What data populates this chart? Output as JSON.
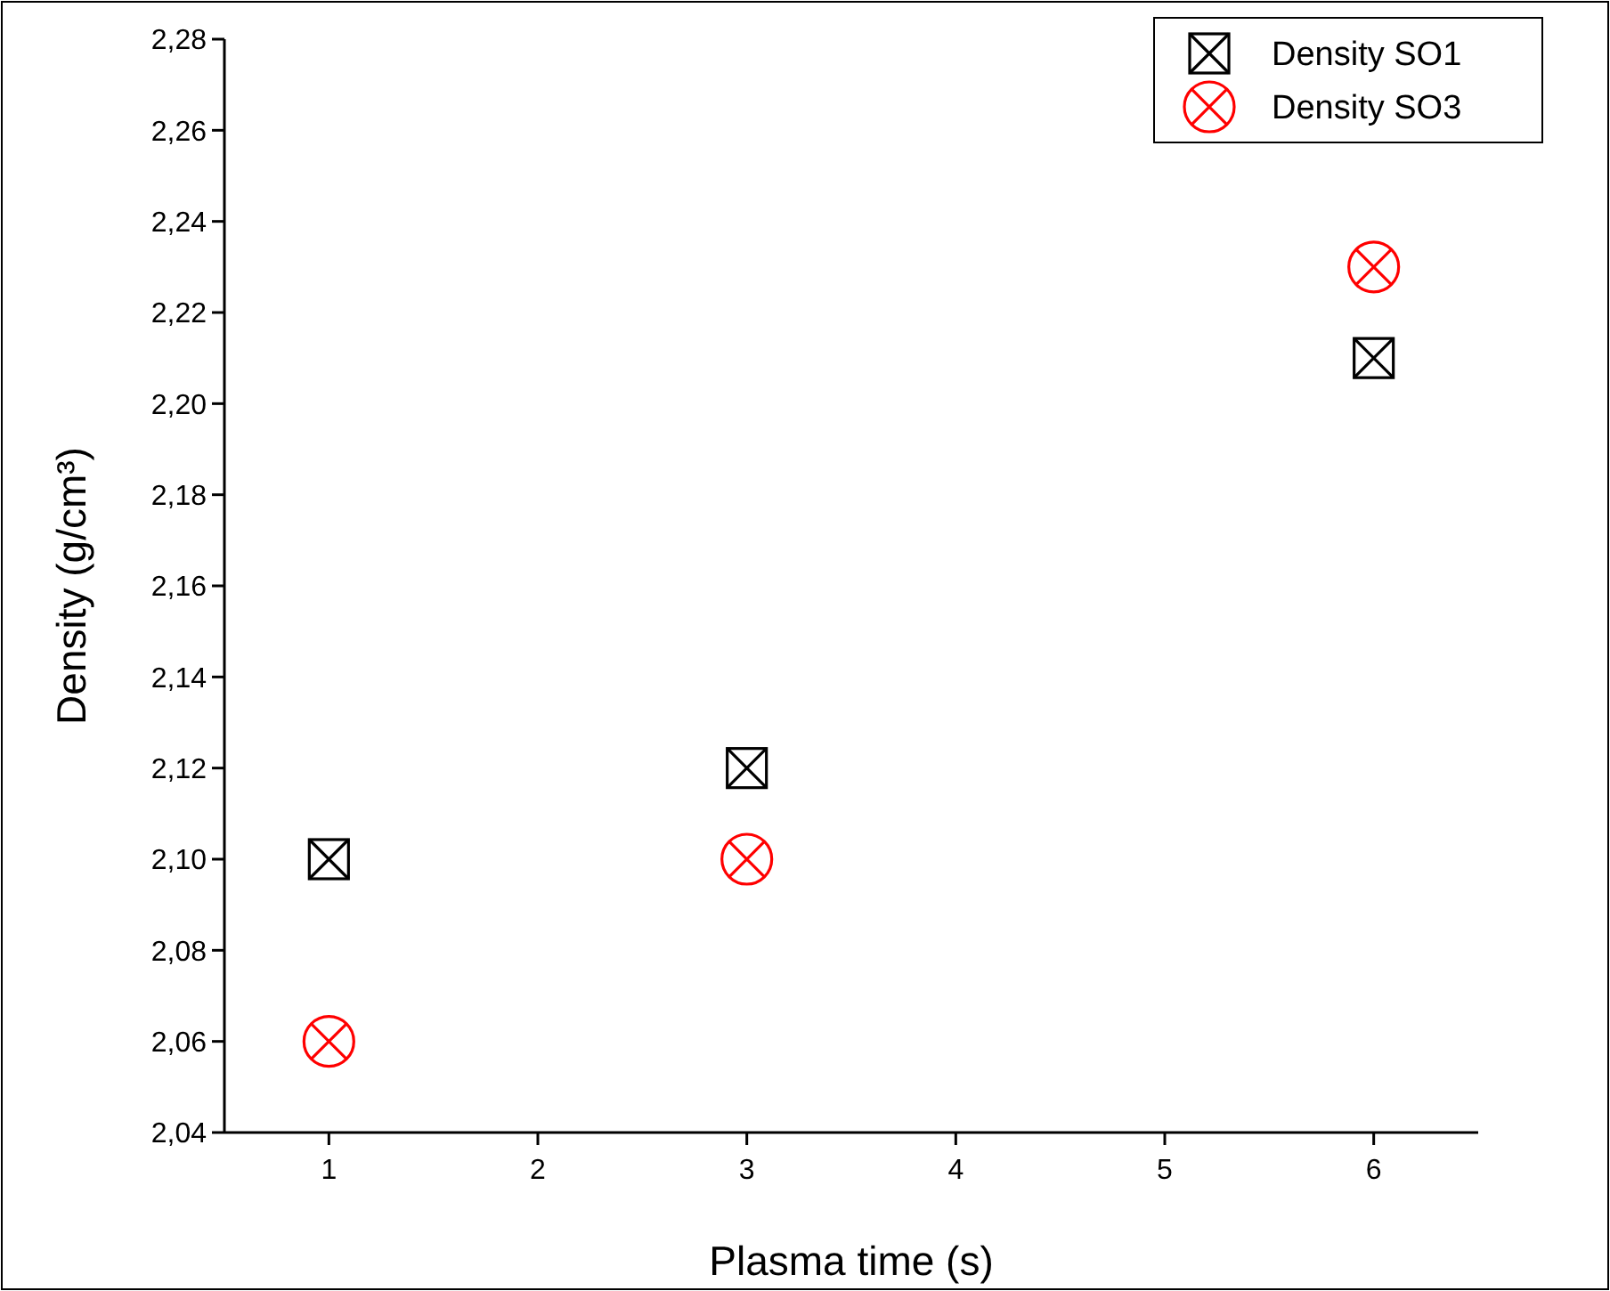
{
  "chart_data": {
    "type": "scatter",
    "xlabel": "Plasma time (s)",
    "ylabel": "Density (g/cm³)",
    "x": [
      1,
      3,
      6
    ],
    "series": [
      {
        "name": "Density SO1",
        "color": "#000000",
        "marker": "square",
        "values": [
          2.1,
          2.12,
          2.21
        ]
      },
      {
        "name": "Density SO3",
        "color": "#ff0000",
        "marker": "circle",
        "values": [
          2.06,
          2.1,
          2.23
        ]
      }
    ],
    "xlim": [
      0.5,
      6.5
    ],
    "xticks": [
      1,
      2,
      3,
      4,
      5,
      6
    ],
    "ylim": [
      2.04,
      2.28
    ],
    "yticks": [
      {
        "value": 2.04,
        "label": "2,04"
      },
      {
        "value": 2.06,
        "label": "2,06"
      },
      {
        "value": 2.08,
        "label": "2,08"
      },
      {
        "value": 2.1,
        "label": "2,10"
      },
      {
        "value": 2.12,
        "label": "2,12"
      },
      {
        "value": 2.14,
        "label": "2,14"
      },
      {
        "value": 2.16,
        "label": "2,16"
      },
      {
        "value": 2.18,
        "label": "2,18"
      },
      {
        "value": 2.2,
        "label": "2,20"
      },
      {
        "value": 2.22,
        "label": "2,22"
      },
      {
        "value": 2.24,
        "label": "2,24"
      },
      {
        "value": 2.26,
        "label": "2,26"
      },
      {
        "value": 2.28,
        "label": "2,28"
      }
    ],
    "legend": "top right",
    "grid": false
  }
}
